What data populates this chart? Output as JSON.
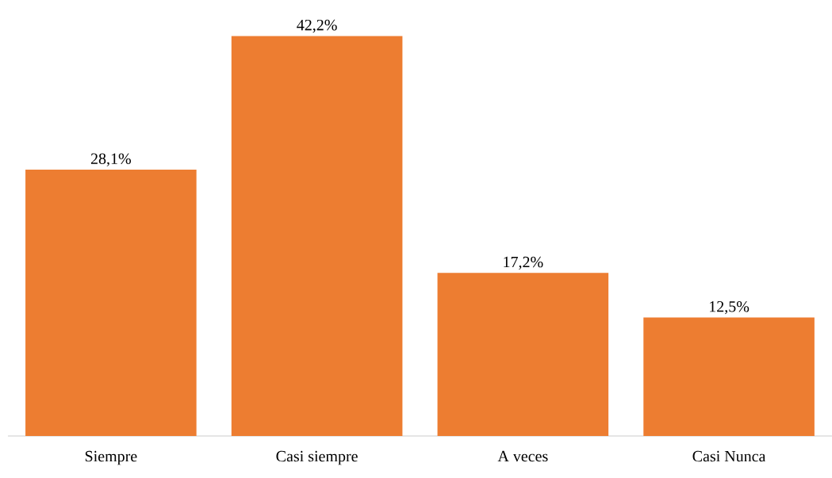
{
  "chart_data": {
    "type": "bar",
    "categories": [
      "Siempre",
      "Casi siempre",
      "A veces",
      "Casi Nunca"
    ],
    "values": [
      28.1,
      42.2,
      17.2,
      12.5
    ],
    "value_labels": [
      "28,1%",
      "42,2%",
      "17,2%",
      "12,5%"
    ],
    "color": "#ed7d31",
    "tick_labels": "x"
  }
}
